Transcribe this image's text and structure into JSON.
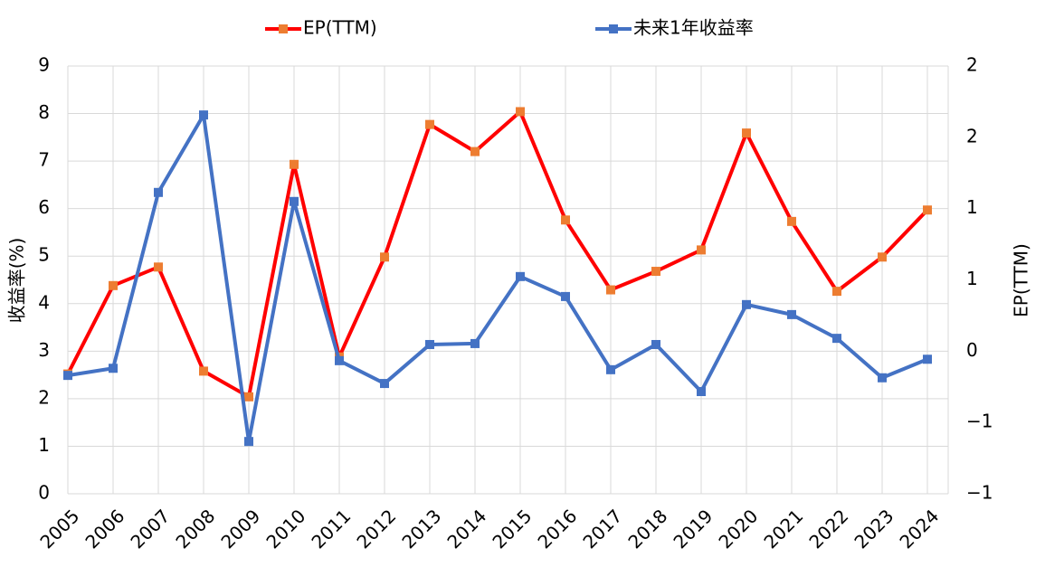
{
  "chart_data": {
    "type": "line",
    "categories": [
      "2005",
      "2006",
      "2007",
      "2008",
      "2009",
      "2010",
      "2011",
      "2012",
      "2013",
      "2014",
      "2015",
      "2016",
      "2017",
      "2018",
      "2019",
      "2020",
      "2021",
      "2022",
      "2023",
      "2024"
    ],
    "series": [
      {
        "name": "EP(TTM)",
        "color": "#ff0000",
        "marker_color": "#ed7d31",
        "axis": "y2",
        "values": [
          -0.16,
          0.46,
          0.59,
          -0.14,
          -0.32,
          1.31,
          -0.04,
          0.66,
          1.59,
          1.4,
          1.68,
          0.92,
          0.43,
          0.56,
          0.71,
          1.53,
          0.91,
          0.42,
          0.66,
          0.99
        ]
      },
      {
        "name": "未来1年收益率",
        "color": "#4472c4",
        "marker_color": "#4472c4",
        "values": [
          2.49,
          2.64,
          6.34,
          7.97,
          1.1,
          6.15,
          2.8,
          2.32,
          3.14,
          3.16,
          4.57,
          4.15,
          2.61,
          3.14,
          2.15,
          3.98,
          3.77,
          3.27,
          2.44,
          2.83
        ]
      }
    ],
    "ylabel": "收益率(%)",
    "y2label": "EP(TTM)",
    "ylim": [
      0,
      9
    ],
    "yticks": [
      0,
      1,
      2,
      3,
      4,
      5,
      6,
      7,
      8,
      9
    ],
    "y2lim": [
      -1,
      2
    ],
    "y2ticks": [
      {
        "value": -1,
        "label": "−1"
      },
      {
        "value": -0.5,
        "label": "−1"
      },
      0,
      {
        "value": 0.5,
        "label": "1"
      },
      1,
      {
        "value": 1.5,
        "label": "2"
      },
      2
    ],
    "grid": true,
    "legend": "top"
  }
}
